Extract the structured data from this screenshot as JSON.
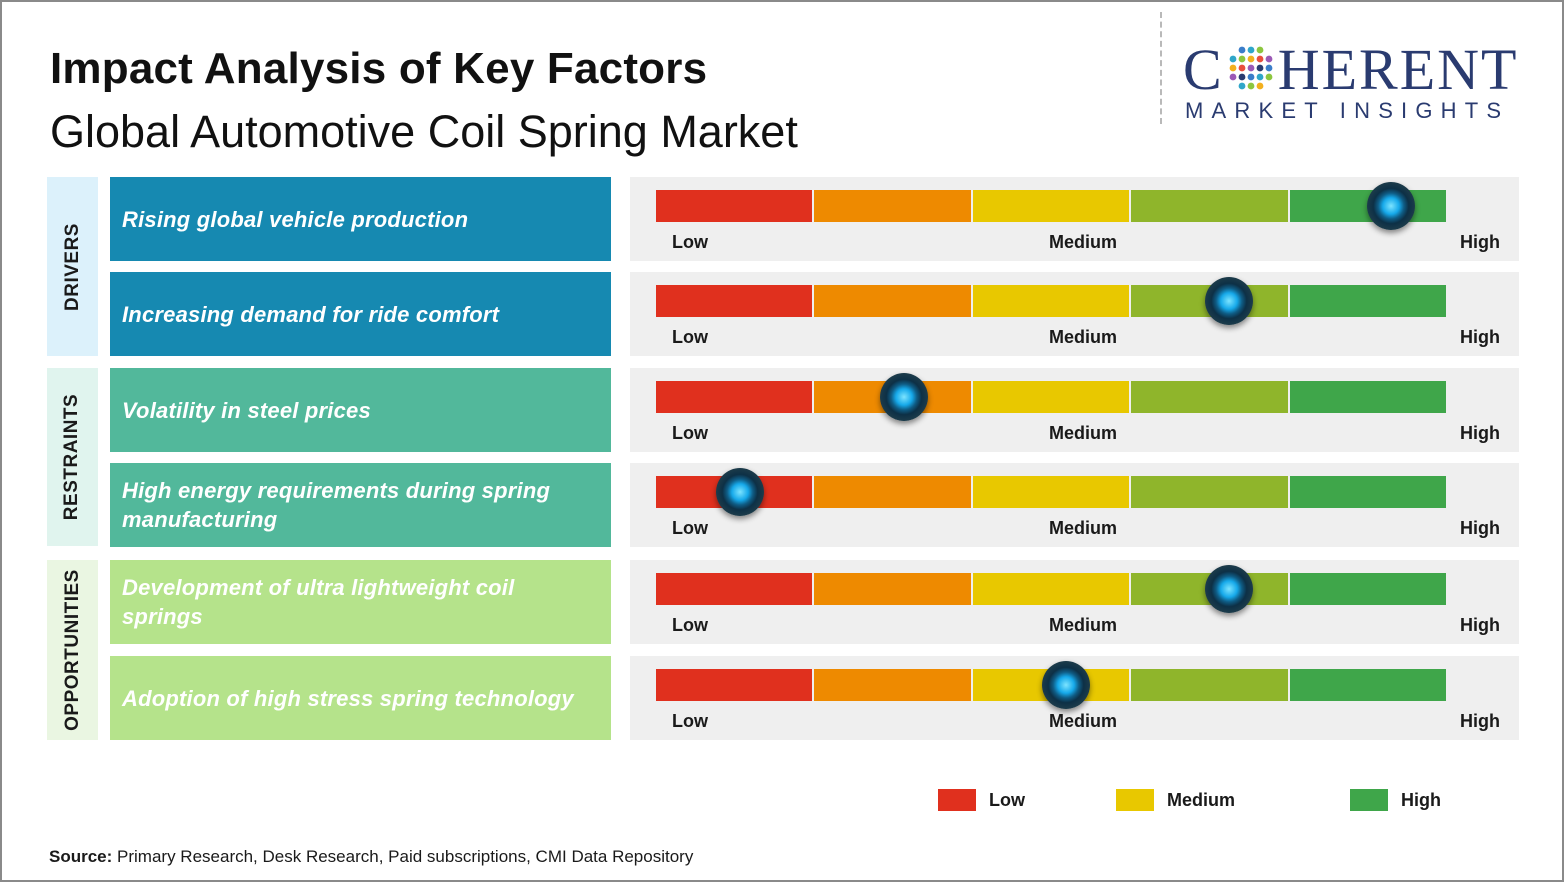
{
  "header": {
    "title": "Impact Analysis of Key Factors",
    "subtitle": "Global Automotive Coil Spring Market"
  },
  "logo": {
    "brand_prefix": "C",
    "brand_suffix": "HERENT",
    "tagline": "MARKET INSIGHTS",
    "icon": "dot-grid-logo-icon"
  },
  "scale": {
    "low_label": "Low",
    "medium_label": "Medium",
    "high_label": "High",
    "segment_colors": [
      "#e0301e",
      "#ee8a00",
      "#e8c800",
      "#8fb52b",
      "#3fa64a"
    ]
  },
  "categories": [
    {
      "label": "DRIVERS",
      "color": "#dcf1fb"
    },
    {
      "label": "RESTRAINTS",
      "color": "#e0f4ee"
    },
    {
      "label": "OPPORTUNITIES",
      "color": "#eaf6e2"
    }
  ],
  "factors": [
    {
      "label": "Rising global vehicle production",
      "category": "DRIVERS",
      "color": "#1689b1",
      "impact": 0.93
    },
    {
      "label": "Increasing demand for ride comfort",
      "category": "DRIVERS",
      "color": "#1689b1",
      "impact": 0.725
    },
    {
      "label": "Volatility in steel prices",
      "category": "RESTRAINTS",
      "color": "#52b89b",
      "impact": 0.314
    },
    {
      "label": "High energy requirements during spring manufacturing",
      "category": "RESTRAINTS",
      "color": "#52b89b",
      "impact": 0.106
    },
    {
      "label": "Development of ultra lightweight coil springs",
      "category": "OPPORTUNITIES",
      "color": "#b5e38b",
      "impact": 0.725
    },
    {
      "label": "Adoption of high stress spring technology",
      "category": "OPPORTUNITIES",
      "color": "#b5e38b",
      "impact": 0.519
    }
  ],
  "legend": [
    {
      "label": "Low",
      "color": "#e0301e"
    },
    {
      "label": "Medium",
      "color": "#e8c800"
    },
    {
      "label": "High",
      "color": "#3fa64a"
    }
  ],
  "source": {
    "prefix": "Source:",
    "text": " Primary Research, Desk Research, Paid subscriptions, CMI Data Repository"
  }
}
